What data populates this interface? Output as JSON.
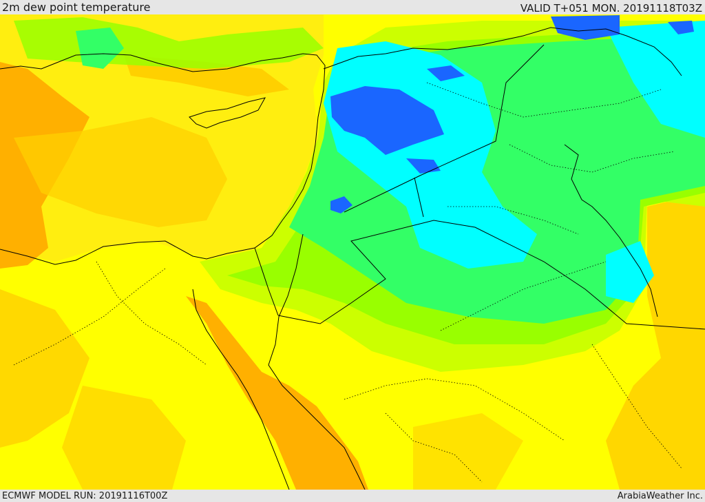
{
  "header": {
    "title": "2m dew point temperature",
    "valid": "VALID T+051 MON. 20191118T03Z"
  },
  "footer": {
    "model_run": "ECMWF MODEL RUN: 20191116T00Z",
    "brand": "ArabiaWeather Inc."
  },
  "map": {
    "colors": {
      "orange": "#ffb000",
      "light_orange": "#ffd000",
      "yellow": "#ffff00",
      "light_yellow": "#ffee10",
      "yellow_green": "#ccff00",
      "lime": "#99ff00",
      "green": "#33ff66",
      "light_green": "#55ff55",
      "sea_green": "#22ffaa",
      "cyan": "#00ffff",
      "blue": "#1a66ff",
      "border": "#000000"
    }
  }
}
